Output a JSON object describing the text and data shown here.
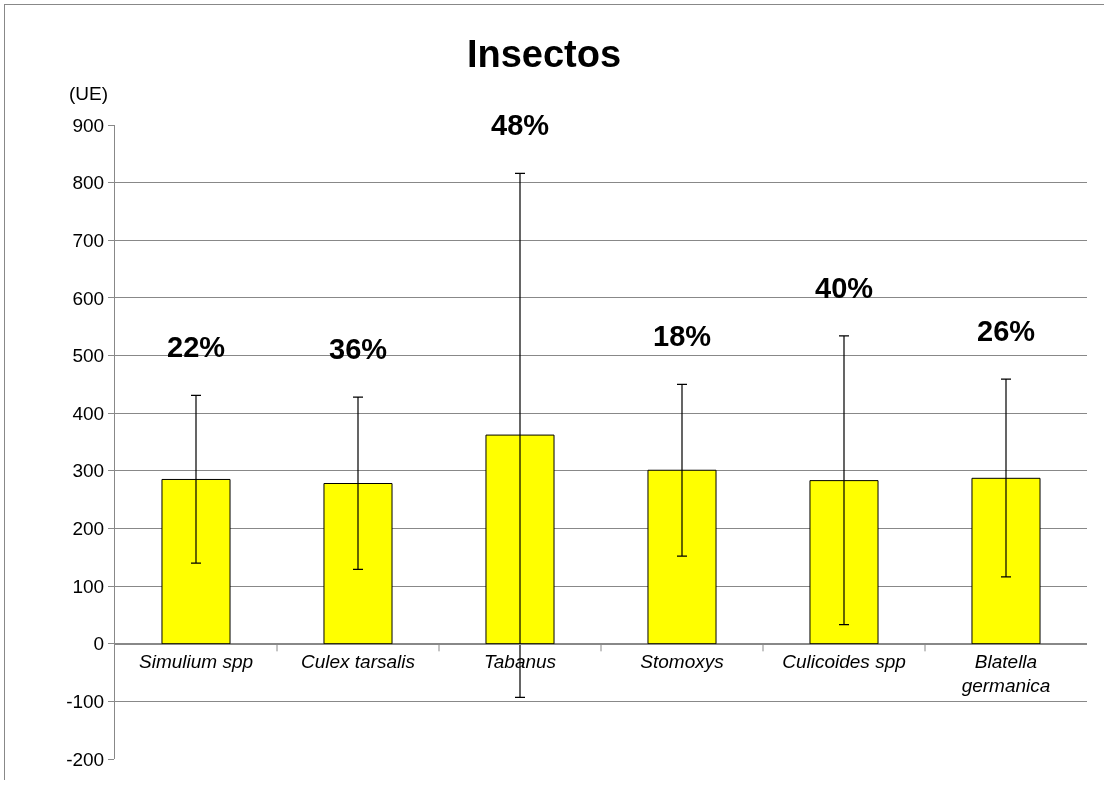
{
  "chart_data": {
    "type": "bar",
    "title": "Insectos",
    "ylabel": "(UE)",
    "categories": [
      "Simulium spp",
      "Culex tarsalis",
      "Tabanus",
      "Stomoxys",
      "Culicoides spp",
      "Blatella germanica"
    ],
    "values": [
      285,
      278,
      362,
      301,
      283,
      287
    ],
    "color": "#ffff00",
    "errors": [
      [
        140,
        431
      ],
      [
        129,
        428
      ],
      [
        -93,
        816
      ],
      [
        152,
        450
      ],
      [
        33,
        534
      ],
      [
        116,
        459
      ]
    ],
    "annotations": [
      "22%",
      "36%",
      "48%",
      "18%",
      "40%",
      "26%"
    ],
    "ylim": [
      -200,
      900
    ],
    "yticks": [
      -200,
      -100,
      0,
      100,
      200,
      300,
      400,
      500,
      600,
      700,
      800,
      900
    ],
    "grid": "y"
  }
}
